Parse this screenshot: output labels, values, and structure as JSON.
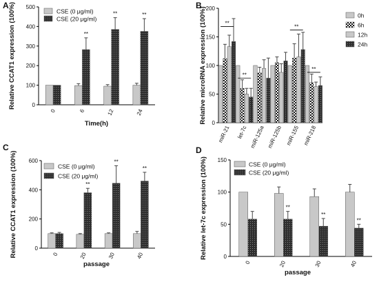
{
  "colors": {
    "light": "#c8c8c8",
    "dark": "#3a3a3a",
    "axis": "#000000"
  },
  "chart_data": [
    {
      "panel": "A",
      "type": "bar",
      "categories": [
        "0",
        "6",
        "12",
        "24"
      ],
      "xlabel": "Time(h)",
      "ylabel": "Relative CCAT1 expression (100%)",
      "ylim": [
        0,
        500
      ],
      "yticks": [
        "0",
        "100",
        "200",
        "300",
        "400",
        "500"
      ],
      "legend_position": "top-left",
      "series": [
        {
          "name": "CSE (0 μg/ml)",
          "values": [
            100,
            98,
            95,
            100
          ],
          "errors": [
            0,
            10,
            8,
            10
          ],
          "fill": "light"
        },
        {
          "name": "CSE (20 μg/ml)",
          "values": [
            100,
            282,
            385,
            375
          ],
          "errors": [
            0,
            60,
            60,
            65
          ],
          "fill": "dark"
        }
      ],
      "annotations": [
        {
          "category": 1,
          "series": 1,
          "text": "**"
        },
        {
          "category": 2,
          "series": 1,
          "text": "**"
        },
        {
          "category": 3,
          "series": 1,
          "text": "**"
        }
      ]
    },
    {
      "panel": "B",
      "type": "bar",
      "categories": [
        "miR-21",
        "let-7c",
        "miR-125a",
        "miR-125b",
        "miR-155",
        "miR-218"
      ],
      "xlabel": "",
      "ylabel": "Relative microRNA expression (100%)",
      "ylim": [
        0,
        200
      ],
      "yticks": [
        "0",
        "50",
        "100",
        "150",
        "200"
      ],
      "legend_position": "top-right",
      "series": [
        {
          "name": "0h",
          "values": [
            100,
            100,
            100,
            100,
            100,
            100
          ],
          "errors": [
            0,
            0,
            0,
            0,
            0,
            0
          ],
          "fill": "light"
        },
        {
          "name": "6h",
          "values": [
            112,
            60,
            87,
            105,
            113,
            70
          ],
          "errors": [
            25,
            15,
            10,
            10,
            25,
            15
          ],
          "fill": "check"
        },
        {
          "name": "12h",
          "values": [
            133,
            50,
            95,
            88,
            115,
            63
          ],
          "errors": [
            20,
            10,
            15,
            15,
            40,
            8
          ],
          "fill": "light"
        },
        {
          "name": "24h",
          "values": [
            142,
            45,
            78,
            108,
            128,
            65
          ],
          "errors": [
            40,
            15,
            35,
            15,
            30,
            15
          ],
          "fill": "dark"
        }
      ],
      "annotations": [
        {
          "category": 0,
          "text": "**",
          "level": 168
        },
        {
          "category": 1,
          "text": "**",
          "level": 78
        },
        {
          "category": 4,
          "text": "**",
          "level": 162
        },
        {
          "category": 5,
          "text": "**",
          "level": 88
        }
      ]
    },
    {
      "panel": "C",
      "type": "bar",
      "categories": [
        "0",
        "20",
        "30",
        "40"
      ],
      "xlabel": "passage",
      "ylabel": "Relative CCAT1 expression (100%)",
      "ylim": [
        0,
        600
      ],
      "yticks": [
        "0",
        "200",
        "400",
        "600"
      ],
      "legend_position": "top-left",
      "series": [
        {
          "name": "CSE (0 μg/ml)",
          "values": [
            100,
            95,
            100,
            100
          ],
          "errors": [
            5,
            5,
            5,
            15
          ],
          "fill": "light"
        },
        {
          "name": "CSE (20 μg/ml)",
          "values": [
            100,
            380,
            445,
            460
          ],
          "errors": [
            8,
            30,
            120,
            60
          ],
          "fill": "dark"
        }
      ],
      "annotations": [
        {
          "category": 1,
          "series": 1,
          "text": "**"
        },
        {
          "category": 2,
          "series": 1,
          "text": "**"
        },
        {
          "category": 3,
          "series": 1,
          "text": "**"
        }
      ]
    },
    {
      "panel": "D",
      "type": "bar",
      "categories": [
        "0",
        "20",
        "30",
        "40"
      ],
      "xlabel": "passage",
      "ylabel": "Relative let-7c expression (100%)",
      "ylim": [
        0,
        150
      ],
      "yticks": [
        "0",
        "50",
        "100",
        "150"
      ],
      "legend_position": "top-left",
      "series": [
        {
          "name": "CSE (0 μg/ml)",
          "values": [
            100,
            98,
            93,
            100
          ],
          "errors": [
            0,
            10,
            12,
            12
          ],
          "fill": "light"
        },
        {
          "name": "CSE (20 μg/ml)",
          "values": [
            58,
            58,
            47,
            44
          ],
          "errors": [
            12,
            12,
            12,
            6
          ],
          "fill": "dark"
        }
      ],
      "annotations": [
        {
          "category": 1,
          "series": 1,
          "text": "**"
        },
        {
          "category": 2,
          "series": 1,
          "text": "**"
        },
        {
          "category": 3,
          "series": 1,
          "text": "**"
        }
      ]
    }
  ]
}
